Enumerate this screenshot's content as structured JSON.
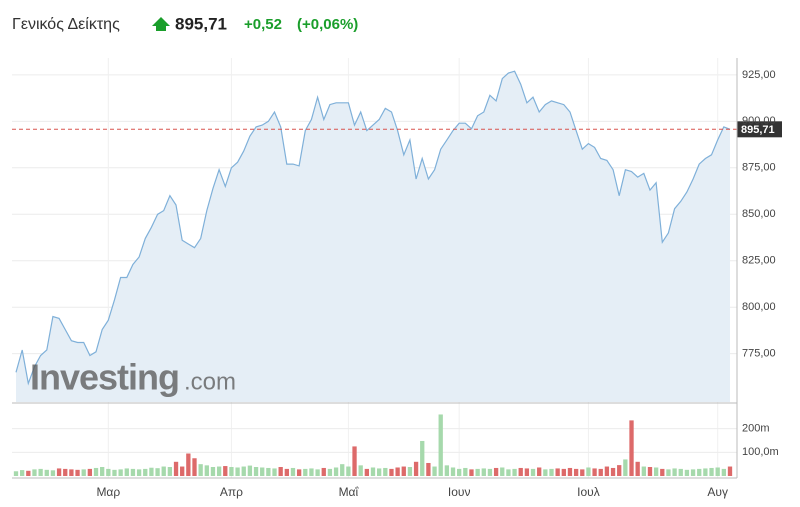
{
  "chart_data": [
    {
      "type": "area",
      "title": "Γενικός Δείκτης",
      "last": {
        "value": 895.71,
        "label": "895,71"
      },
      "change": {
        "value": 0.52,
        "label": "+0,52"
      },
      "change_pct": {
        "value": 0.06,
        "label": "(+0,06%)"
      },
      "watermark": {
        "brand": "Investing",
        "domain": ".com"
      },
      "color": "#7fb0d9",
      "fill": "#e5eef6",
      "last_line_color": "#d9534f",
      "grid": true,
      "categories": [
        null,
        null,
        null,
        null,
        null,
        null,
        null,
        null,
        null,
        null,
        null,
        null,
        null,
        null,
        null,
        "Μαρ",
        null,
        null,
        null,
        null,
        null,
        null,
        null,
        null,
        null,
        null,
        null,
        null,
        null,
        null,
        null,
        null,
        null,
        null,
        null,
        "Απρ",
        null,
        null,
        null,
        null,
        null,
        null,
        null,
        null,
        null,
        null,
        null,
        null,
        null,
        null,
        null,
        null,
        null,
        null,
        "Μαΐ",
        null,
        null,
        null,
        null,
        null,
        null,
        null,
        null,
        null,
        null,
        null,
        null,
        null,
        null,
        null,
        null,
        null,
        "Ιουν",
        null,
        null,
        null,
        null,
        null,
        null,
        null,
        null,
        null,
        null,
        null,
        null,
        null,
        null,
        null,
        null,
        null,
        null,
        null,
        null,
        "Ιουλ",
        null,
        null,
        null,
        null,
        null,
        null,
        null,
        null,
        null,
        null,
        null,
        null,
        null,
        null,
        null,
        null,
        null,
        null,
        null,
        null,
        "Αυγ",
        null,
        null
      ],
      "values": [
        765,
        777,
        759,
        768,
        774,
        777,
        795,
        794,
        788,
        782,
        781,
        781,
        774,
        776,
        788,
        793,
        804,
        816,
        816,
        823,
        827,
        837,
        843,
        850,
        852,
        860,
        855,
        836,
        834,
        832,
        837,
        852,
        864,
        874,
        865,
        875,
        878,
        884,
        892,
        897,
        898,
        900,
        905,
        897,
        877,
        877,
        876,
        895,
        901,
        913,
        901,
        909,
        910,
        910,
        910,
        898,
        905,
        895,
        898,
        901,
        907,
        905,
        895,
        882,
        890,
        869,
        880,
        869,
        874,
        885,
        890,
        895,
        899,
        899,
        896,
        903,
        905,
        914,
        911,
        923,
        926,
        927,
        920,
        910,
        913,
        905,
        909,
        911,
        910,
        909,
        905,
        895,
        885,
        888,
        886,
        880,
        879,
        874,
        860,
        874,
        873,
        870,
        872,
        863,
        867,
        835,
        840,
        853,
        857,
        862,
        869,
        877,
        880,
        882,
        890,
        897,
        895.71
      ],
      "ylim": [
        749,
        933
      ],
      "yticks": [
        {
          "value": 775,
          "label": "775,00"
        },
        {
          "value": 800,
          "label": "800,00"
        },
        {
          "value": 825,
          "label": "825,00"
        },
        {
          "value": 850,
          "label": "850,00"
        },
        {
          "value": 875,
          "label": "875,00"
        },
        {
          "value": 900,
          "label": "900,00"
        },
        {
          "value": 925,
          "label": "925,00"
        }
      ]
    },
    {
      "type": "bar",
      "up_color": "#a6d9ac",
      "down_color": "#dd6a6a",
      "grid": true,
      "values": [
        20,
        25,
        22,
        28,
        30,
        26,
        24,
        32,
        30,
        28,
        26,
        28,
        30,
        34,
        38,
        30,
        26,
        28,
        32,
        30,
        28,
        30,
        35,
        33,
        40,
        38,
        60,
        40,
        95,
        75,
        50,
        45,
        38,
        40,
        42,
        38,
        36,
        40,
        44,
        38,
        36,
        34,
        32,
        38,
        30,
        34,
        28,
        30,
        32,
        28,
        34,
        30,
        36,
        50,
        40,
        125,
        45,
        30,
        36,
        32,
        34,
        30,
        36,
        40,
        38,
        60,
        148,
        55,
        40,
        260,
        45,
        36,
        30,
        34,
        28,
        30,
        32,
        30,
        34,
        36,
        28,
        30,
        34,
        32,
        30,
        36,
        28,
        30,
        32,
        30,
        34,
        30,
        28,
        36,
        32,
        30,
        40,
        34,
        46,
        70,
        235,
        60,
        40,
        38,
        36,
        30,
        28,
        32,
        30,
        26,
        28,
        30,
        32,
        34,
        36,
        30,
        40
      ],
      "ylim": [
        0,
        300
      ],
      "yticks": [
        {
          "value": 100,
          "label": "100,0m"
        },
        {
          "value": 200,
          "label": "200m"
        }
      ]
    }
  ]
}
